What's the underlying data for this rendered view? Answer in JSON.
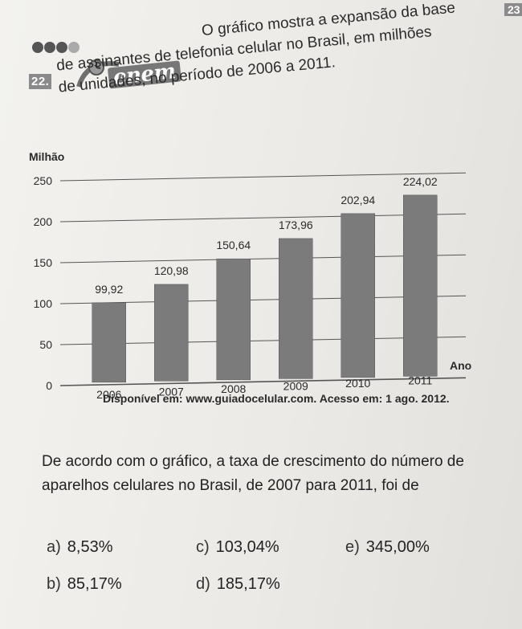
{
  "header": {
    "question_number": "22.",
    "corner_number": "23",
    "logo_text": "enem"
  },
  "intro": {
    "line1": "O gráfico mostra a expansão da base",
    "line2": "de assinantes de telefonia celular no Brasil, em milhões",
    "line3": "de unidades, no período de 2006 a 2011."
  },
  "chart_data": {
    "type": "bar",
    "categories": [
      "2006",
      "2007",
      "2008",
      "2009",
      "2010",
      "2011"
    ],
    "values": [
      99.92,
      120.98,
      150.64,
      173.96,
      202.94,
      224.02
    ],
    "value_labels": [
      "99,92",
      "120,98",
      "150,64",
      "173,96",
      "202,94",
      "224,02"
    ],
    "ylabel": "Milhão",
    "xlabel": "Ano",
    "yticks": [
      0,
      50,
      100,
      150,
      200,
      250
    ],
    "ylim": [
      0,
      250
    ],
    "grid": true,
    "bar_color": "#7b7b7b"
  },
  "source": "Disponível em: www.guiadocelular.com. Acesso em: 1 ago. 2012.",
  "question": "De acordo com o gráfico, a taxa de crescimento do número de aparelhos celulares no Brasil, de 2007 para 2011, foi de",
  "options": [
    {
      "letter": "a)",
      "text": "8,53%"
    },
    {
      "letter": "b)",
      "text": "85,17%"
    },
    {
      "letter": "c)",
      "text": "103,04%"
    },
    {
      "letter": "d)",
      "text": "185,17%"
    },
    {
      "letter": "e)",
      "text": "345,00%"
    }
  ]
}
